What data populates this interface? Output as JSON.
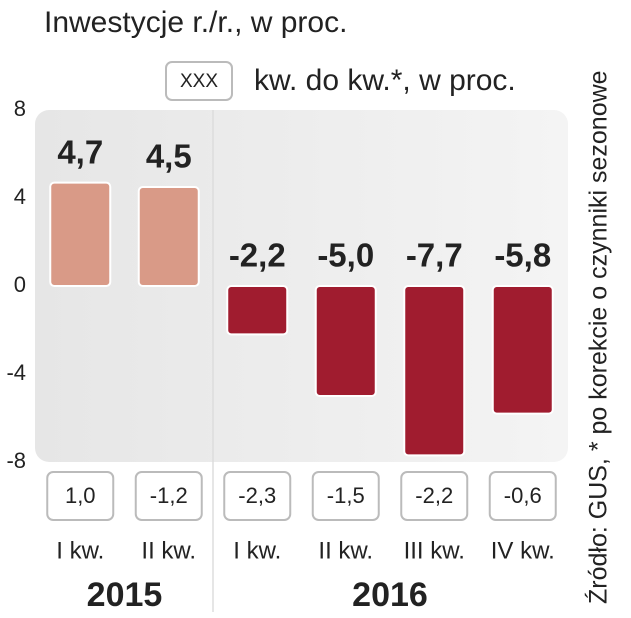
{
  "chart_data": {
    "type": "bar",
    "title": "Inwestycje r./r., w proc.",
    "legend": {
      "sample": "XXX",
      "label": "kw. do kw.*, w proc."
    },
    "source": "Źródło: GUS, * po korekcie o czynniki sezonowe",
    "ylim": [
      -8,
      8
    ],
    "yticks": [
      8,
      4,
      0,
      -4,
      -8
    ],
    "grid": false,
    "groups": [
      {
        "name": "2015",
        "color": "#d99a87",
        "categories": [
          "I kw.",
          "II kw."
        ],
        "values": [
          4.7,
          4.5
        ],
        "value_labels": [
          "4,7",
          "4,5"
        ],
        "qq_values": [
          1.0,
          -1.2
        ],
        "qq_labels": [
          "1,0",
          "-1,2"
        ]
      },
      {
        "name": "2016",
        "color": "#a01c2f",
        "categories": [
          "I kw.",
          "II kw.",
          "III kw.",
          "IV kw."
        ],
        "values": [
          -2.2,
          -5.0,
          -7.7,
          -5.8
        ],
        "value_labels": [
          "-2,2",
          "-5,0",
          "-7,7",
          "-5,8"
        ],
        "qq_values": [
          -2.3,
          -1.5,
          -2.2,
          -0.6
        ],
        "qq_labels": [
          "-2,3",
          "-1,5",
          "-2,2",
          "-0,6"
        ]
      }
    ]
  }
}
